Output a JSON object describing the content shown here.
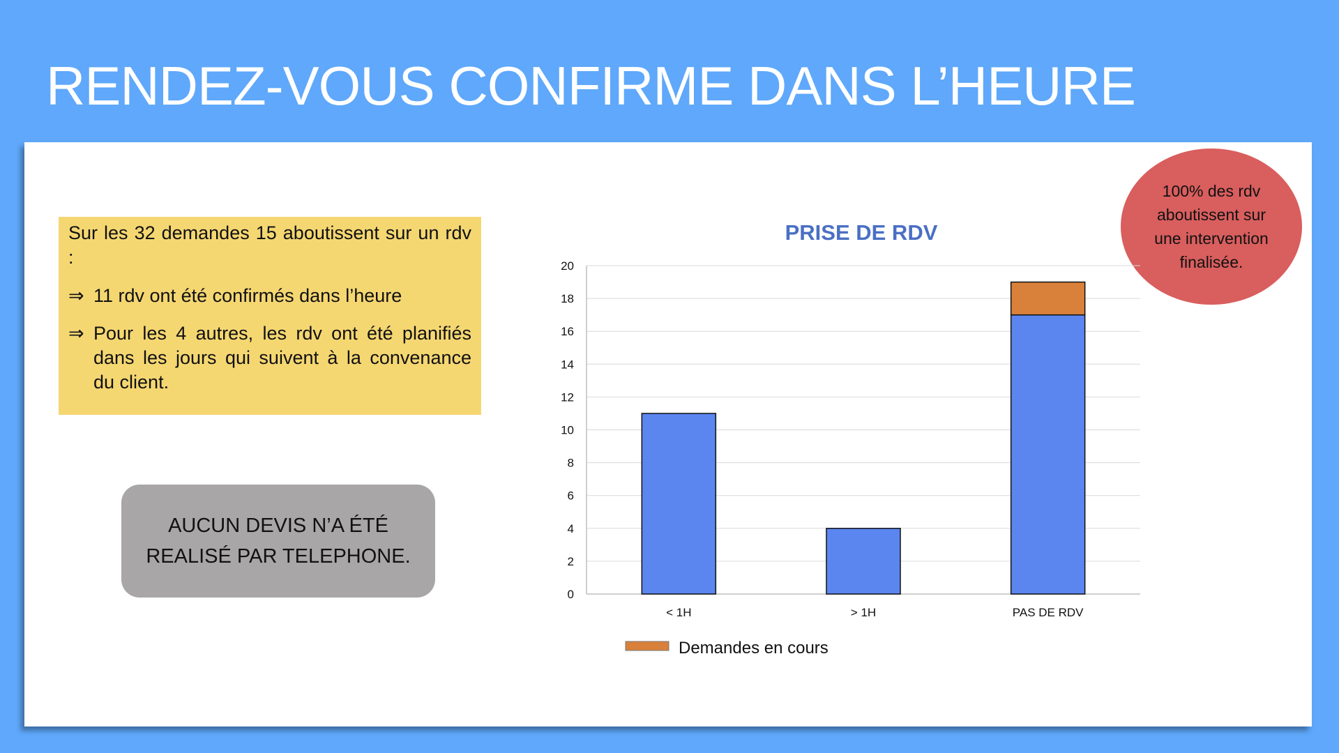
{
  "slide": {
    "title": "RENDEZ-VOUS CONFIRME DANS L’HEURE"
  },
  "summary": {
    "intro": "Sur les 32 demandes 15 aboutissent sur un rdv :",
    "arrow": "⇒",
    "point1": "11 rdv ont été confirmés dans l’heure",
    "point2": "Pour les 4 autres, les rdv ont été planifiés dans les jours qui suivent à la convenance du client."
  },
  "note": {
    "line1": "AUCUN DEVIS N’A ÉTÉ",
    "line2": "REALISÉ PAR TELEPHONE."
  },
  "bubble": {
    "text": "100% des rdv aboutissent sur une intervention finalisée."
  },
  "colors": {
    "background": "#5fa8fb",
    "summary_bg": "#f5d772",
    "note_bg": "#a8a6a7",
    "bubble_bg": "#d95e5e",
    "series_main": "#5b86f0",
    "series_pending": "#d9813a",
    "title_color": "#4a6fc4"
  },
  "chart_data": {
    "type": "bar",
    "stacked": true,
    "title": "PRISE DE RDV",
    "xlabel": "",
    "ylabel": "",
    "categories": [
      "< 1H",
      "> 1H",
      "PAS DE RDV"
    ],
    "series": [
      {
        "values": [
          11,
          4,
          17
        ],
        "color": "#5b86f0"
      },
      {
        "name": "Demandes en cours",
        "values": [
          0,
          0,
          2
        ],
        "color": "#d9813a"
      }
    ],
    "ylim": [
      0,
      20
    ],
    "yticks": [
      0,
      2,
      4,
      6,
      8,
      10,
      12,
      14,
      16,
      18,
      20
    ],
    "grid": true,
    "legend": "bottom-left"
  }
}
